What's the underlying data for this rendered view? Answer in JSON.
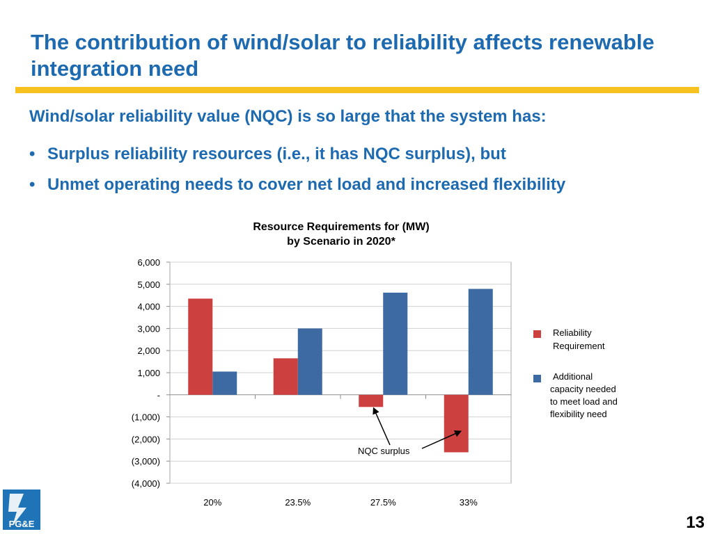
{
  "slide": {
    "title": "The contribution of wind/solar to reliability affects renewable integration need",
    "lead": "Wind/solar reliability value (NQC) is so large that the system has:",
    "bullets": [
      {
        "marker": "•",
        "text": "Surplus reliability resources (i.e., it has NQC surplus), but"
      },
      {
        "marker": "•",
        "text": "Unmet operating needs to cover net load and increased flexibility"
      }
    ],
    "page_number": "13",
    "logo": {
      "text": "PG&E",
      "icon": "pge-logo-icon"
    }
  },
  "colors": {
    "title": "#1e6ab0",
    "rule": "#f7c11f",
    "reliability": "#cc4040",
    "additional": "#3d6aa3"
  },
  "chart_data": {
    "type": "bar",
    "title_lines": [
      "Resource Requirements for (MW)",
      "by Scenario in 2020*"
    ],
    "categories": [
      "20%",
      "23.5%",
      "27.5%",
      "33%"
    ],
    "series": [
      {
        "name": "Reliability Requirement",
        "values": [
          4350,
          1650,
          -550,
          -2600
        ]
      },
      {
        "name": "Additional capacity needed to meet load and flexibility need",
        "values": [
          1050,
          3000,
          4620,
          4790
        ]
      }
    ],
    "ylim": [
      -4000,
      6000
    ],
    "yticks": [
      6000,
      5000,
      4000,
      3000,
      2000,
      1000,
      0,
      -1000,
      -2000,
      -3000,
      -4000
    ],
    "ytick_labels": [
      "6,000",
      "5,000",
      "4,000",
      "3,000",
      "2,000",
      "1,000",
      "-",
      "(1,000)",
      "(2,000)",
      "(3,000)",
      "(4,000)"
    ],
    "grid": true,
    "legend_position": "right",
    "legend_lines": [
      [
        "Reliability",
        "Requirement"
      ],
      [
        "Additional",
        "capacity needed",
        "to meet load and",
        "flexibility need"
      ]
    ],
    "annotation": {
      "text": "NQC surplus",
      "points_to": [
        {
          "category": "27.5%",
          "series": 0
        },
        {
          "category": "33%",
          "series": 0
        }
      ]
    }
  }
}
